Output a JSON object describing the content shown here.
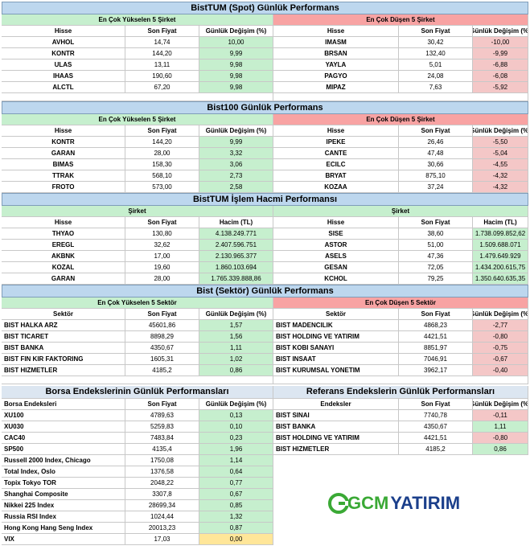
{
  "s1": {
    "title": "BistTUM (Spot) Günlük Performans",
    "left_header": "En Çok Yükselen 5 Şirket",
    "right_header": "En Çok Düşen 5 Şirket",
    "cols": [
      "Hisse",
      "Son Fiyat",
      "Günlük Değişim (%)"
    ],
    "left_rows": [
      [
        "AVHOL",
        "14,74",
        "10,00"
      ],
      [
        "KONTR",
        "144,20",
        "9,99"
      ],
      [
        "ULAS",
        "13,11",
        "9,98"
      ],
      [
        "IHAAS",
        "190,60",
        "9,98"
      ],
      [
        "ALCTL",
        "67,20",
        "9,98"
      ]
    ],
    "right_rows": [
      [
        "IMASM",
        "30,42",
        "-10,00"
      ],
      [
        "BRSAN",
        "132,40",
        "-9,99"
      ],
      [
        "YAYLA",
        "5,01",
        "-6,88"
      ],
      [
        "PAGYO",
        "24,08",
        "-6,08"
      ],
      [
        "MIPAZ",
        "7,63",
        "-5,92"
      ]
    ]
  },
  "s2": {
    "title": "Bist100 Günlük Performans",
    "left_header": "En Çok Yükselen 5 Şirket",
    "right_header": "En Çok Düşen 5 Şirket",
    "cols": [
      "Hisse",
      "Son Fiyat",
      "Günlük Değişim (%)"
    ],
    "left_rows": [
      [
        "KONTR",
        "144,20",
        "9,99"
      ],
      [
        "GARAN",
        "28,00",
        "3,32"
      ],
      [
        "BIMAS",
        "158,30",
        "3,06"
      ],
      [
        "TTRAK",
        "568,10",
        "2,73"
      ],
      [
        "FROTO",
        "573,00",
        "2,58"
      ]
    ],
    "right_rows": [
      [
        "IPEKE",
        "26,46",
        "-5,50"
      ],
      [
        "CANTE",
        "47,48",
        "-5,04"
      ],
      [
        "ECILC",
        "30,66",
        "-4,55"
      ],
      [
        "BRYAT",
        "875,10",
        "-4,32"
      ],
      [
        "KOZAA",
        "37,24",
        "-4,32"
      ]
    ]
  },
  "s3": {
    "title": "BistTUM İşlem Hacmi Performansı",
    "left_header": "Şirket",
    "right_header": "Şirket",
    "cols": [
      "Hisse",
      "Son Fiyat",
      "Hacim (TL)"
    ],
    "left_rows": [
      [
        "THYAO",
        "130,80",
        "4.138.249.771"
      ],
      [
        "EREGL",
        "32,62",
        "2.407.596.751"
      ],
      [
        "AKBNK",
        "17,00",
        "2.130.965.377"
      ],
      [
        "KOZAL",
        "19,60",
        "1.860.103.694"
      ],
      [
        "GARAN",
        "28,00",
        "1.765.339.888,86"
      ]
    ],
    "right_rows": [
      [
        "SISE",
        "38,60",
        "1.738.099.852,62"
      ],
      [
        "ASTOR",
        "51,00",
        "1.509.688.071"
      ],
      [
        "ASELS",
        "47,36",
        "1.479.649.929"
      ],
      [
        "GESAN",
        "72,05",
        "1.434.200.615,75"
      ],
      [
        "KCHOL",
        "79,25",
        "1.350.640.635,35"
      ]
    ]
  },
  "s4": {
    "title": "Bist (Sektör) Günlük Performans",
    "left_header": "En Çok Yükselen 5 Sektör",
    "right_header": "En Çok Düşen 5 Sektör",
    "cols": [
      "Sektör",
      "Son Fiyat",
      "Günlük Değişim (%)"
    ],
    "left_rows": [
      [
        "BIST HALKA ARZ",
        "45601,86",
        "1,57"
      ],
      [
        "BIST TICARET",
        "8898,29",
        "1,56"
      ],
      [
        "BIST BANKA",
        "4350,67",
        "1,11"
      ],
      [
        "BIST FIN KIR FAKTORING",
        "1605,31",
        "1,02"
      ],
      [
        "BIST HIZMETLER",
        "4185,2",
        "0,86"
      ]
    ],
    "right_rows": [
      [
        "BIST MADENCILIK",
        "4868,23",
        "-2,77"
      ],
      [
        "BIST HOLDING VE YATIRIM",
        "4421,51",
        "-0,80"
      ],
      [
        "BIST KOBI SANAYI",
        "8851,97",
        "-0,75"
      ],
      [
        "BIST INSAAT",
        "7046,91",
        "-0,67"
      ],
      [
        "BIST KURUMSAL YONETIM",
        "3962,17",
        "-0,40"
      ]
    ]
  },
  "s5": {
    "left_title": "Borsa Endekslerinin Günlük Performansları",
    "right_title": "Referans Endekslerin  Günlük Performansları",
    "left_cols": [
      "Borsa Endeksleri",
      "Son Fiyat",
      "Günlük Değişim (%)"
    ],
    "right_cols": [
      "Endeksler",
      "Son Fiyat",
      "Günlük Değişim (%)"
    ],
    "left_rows": [
      [
        "XU100",
        "4789,63",
        "0,13"
      ],
      [
        "XU030",
        "5259,83",
        "0,10"
      ],
      [
        "CAC40",
        "7483,84",
        "0,23"
      ],
      [
        "SP500",
        "4135,4",
        "1,96"
      ],
      [
        "Russell 2000 Index, Chicago",
        "1750,08",
        "1,14"
      ],
      [
        "Total Index, Oslo",
        "1376,58",
        "0,64"
      ],
      [
        "Topix Tokyo TOR",
        "2048,22",
        "0,77"
      ],
      [
        "Shanghai Composite",
        "3307,8",
        "0,67"
      ],
      [
        "Nikkei 225 Index",
        "28699,34",
        "0,85"
      ],
      [
        "Russia RSI Index",
        "1024,44",
        "1,32"
      ],
      [
        "Hong Kong Hang Seng Index",
        "20013,23",
        "0,87"
      ],
      [
        "VIX",
        "17,03",
        "0,00"
      ]
    ],
    "right_rows": [
      [
        "BIST SINAI",
        "7740,78",
        "-0,11"
      ],
      [
        "BIST BANKA",
        "4350,67",
        "1,11"
      ],
      [
        "BIST HOLDING VE YATIRIM",
        "4421,51",
        "-0,80"
      ],
      [
        "BIST HIZMETLER",
        "4185,2",
        "0,86"
      ]
    ]
  },
  "logo": {
    "gcm": "GCM",
    "yatirim": "YATIRIM",
    "green": "#3aa935",
    "blue": "#1b3f8b"
  },
  "colors": {
    "title_bg": "#bdd7ee",
    "up_bg": "#c6efce",
    "down_bg": "#f8a3a3",
    "neutral_bg": "#ffe699"
  }
}
